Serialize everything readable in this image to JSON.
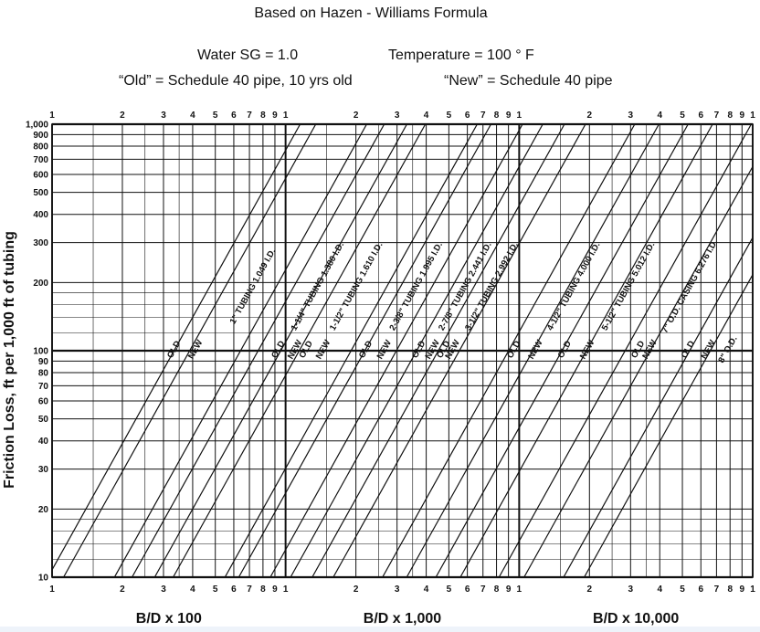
{
  "header": {
    "title": "Based on Hazen - Williams Formula",
    "sg": "Water SG = 1.0",
    "temperature": "Temperature = 100 ° F",
    "old_def": "“Old” = Schedule 40 pipe, 10 yrs old",
    "new_def": "“New” = Schedule 40 pipe"
  },
  "chart_data": {
    "type": "line",
    "title": "",
    "ylabel": "Friction Loss, ft per 1,000 ft of tubing",
    "yscale": "log",
    "ylim": [
      10,
      1000
    ],
    "ytick_labels": [
      "1,000",
      "900",
      "800",
      "700",
      "600",
      "500",
      "400",
      "300",
      "200",
      "100",
      "90",
      "80",
      "70",
      "60",
      "50",
      "40",
      "30",
      "20",
      "10"
    ],
    "xscale": "log",
    "x_cycle_tick_labels": [
      "1",
      "2",
      "3",
      "4",
      "5",
      "6",
      "7",
      "8",
      "9",
      "1"
    ],
    "x_decade_labels": [
      "B/D x 100",
      "B/D x 1,000",
      "B/D x 10,000"
    ],
    "series_labels": [
      {
        "text": "OLD",
        "x": 340,
        "y": 100
      },
      {
        "text": "NEW",
        "x": 420,
        "y": 100
      },
      {
        "text": "1\" TUBING 1.049 I.D.",
        "x": 740,
        "y": 190
      },
      {
        "text": "OLD",
        "x": 950,
        "y": 100
      },
      {
        "text": "NEW",
        "x": 1120,
        "y": 100
      },
      {
        "text": "1-1/4\" TUBING 1.380 I.D.",
        "x": 1400,
        "y": 190
      },
      {
        "text": "OLD",
        "x": 1250,
        "y": 100
      },
      {
        "text": "NEW",
        "x": 1480,
        "y": 100
      },
      {
        "text": "1-1/2\" TUBING 1.610 I.D.",
        "x": 2050,
        "y": 190
      },
      {
        "text": "OLD",
        "x": 2250,
        "y": 100
      },
      {
        "text": "NEW",
        "x": 2700,
        "y": 100
      },
      {
        "text": "2-3/8\" TUBING 1.995 I.D.",
        "x": 3700,
        "y": 190
      },
      {
        "text": "OLD",
        "x": 3800,
        "y": 100
      },
      {
        "text": "NEW",
        "x": 4350,
        "y": 100
      },
      {
        "text": "2-7/8\" TUBING 2.441 I.D.",
        "x": 6000,
        "y": 190
      },
      {
        "text": "OLD",
        "x": 4850,
        "y": 100
      },
      {
        "text": "NEW",
        "x": 5300,
        "y": 100
      },
      {
        "text": "3-1/2\" TUBING 2.992 I.D.",
        "x": 7800,
        "y": 190
      },
      {
        "text": "OLD",
        "x": 9700,
        "y": 100
      },
      {
        "text": "NEW",
        "x": 12000,
        "y": 100
      },
      {
        "text": "4-1/2\" TUBING 4.000 I.D.",
        "x": 17500,
        "y": 190
      },
      {
        "text": "OLD",
        "x": 16000,
        "y": 100
      },
      {
        "text": "NEW",
        "x": 20000,
        "y": 100
      },
      {
        "text": "5-1/2\" TUBING 5.012 I.D.",
        "x": 30000,
        "y": 190
      },
      {
        "text": "OLD",
        "x": 33000,
        "y": 100
      },
      {
        "text": "NEW",
        "x": 37000,
        "y": 100
      },
      {
        "text": "7\" O.D. CASING 6.276 I.D.",
        "x": 55000,
        "y": 190
      },
      {
        "text": "OLD",
        "x": 54000,
        "y": 100
      },
      {
        "text": "NEW",
        "x": 66000,
        "y": 100
      },
      {
        "text": "8\" O.D.",
        "x": 80000,
        "y": 100
      }
    ],
    "curves": [
      {
        "size": "1\"",
        "old_x_at_10": 96,
        "new_x_at_10": 112
      },
      {
        "size": "1-1/4\"",
        "old_x_at_10": 185,
        "new_x_at_10": 220
      },
      {
        "size": "1-1/2\"",
        "old_x_at_10": 275,
        "new_x_at_10": 330
      },
      {
        "size": "2-3/8\"",
        "old_x_at_10": 550,
        "new_x_at_10": 630
      },
      {
        "size": "2-7/8\"",
        "old_x_at_10": 860,
        "new_x_at_10": 1050
      },
      {
        "size": "3-1/2\"",
        "old_x_at_10": 1300,
        "new_x_at_10": 1600
      },
      {
        "size": "4-1/2\"",
        "old_x_at_10": 2600,
        "new_x_at_10": 3300
      },
      {
        "size": "5-1/2\"",
        "old_x_at_10": 4400,
        "new_x_at_10": 5600
      },
      {
        "size": "7\" O.D.",
        "old_x_at_10": 8200,
        "new_x_at_10": 10500
      },
      {
        "size": "8\" O.D.",
        "old_x_at_10": 15500,
        "new_x_at_10": 19000
      }
    ],
    "grid": true
  }
}
